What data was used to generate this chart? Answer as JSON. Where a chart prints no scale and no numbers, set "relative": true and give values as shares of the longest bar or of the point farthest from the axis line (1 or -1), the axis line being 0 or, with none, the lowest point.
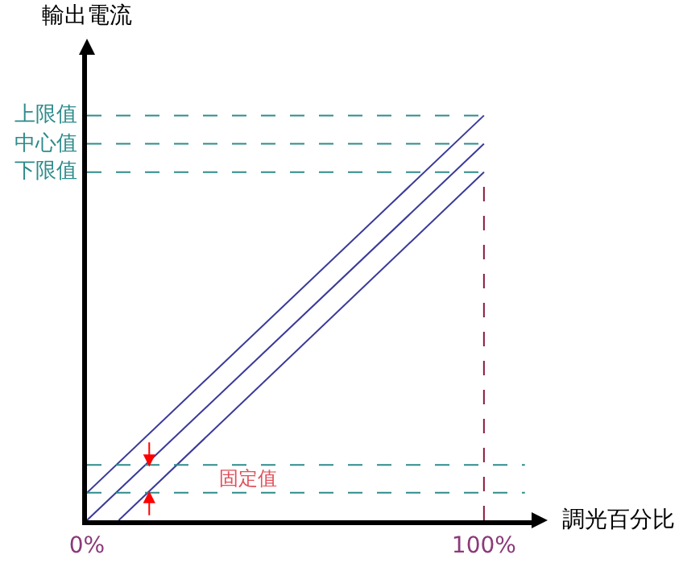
{
  "chart_data": {
    "type": "line",
    "relative": true,
    "xlabel": "調光百分比",
    "ylabel": "輸出電流",
    "xlim": [
      0,
      112
    ],
    "xticks": [
      {
        "value": 0,
        "label": "0%"
      },
      {
        "value": 100,
        "label": "100%"
      }
    ],
    "series": [
      {
        "color": "#3a3a9a",
        "x": [
          0,
          100
        ],
        "values": [
          0.068,
          1
        ]
      },
      {
        "color": "#3a3a9a",
        "x": [
          0,
          100
        ],
        "values": [
          0,
          0.93
        ]
      },
      {
        "color": "#3a3a9a",
        "x": [
          8,
          100
        ],
        "values": [
          0,
          0.86
        ]
      }
    ],
    "ref_lines": [
      {
        "axis": "y",
        "value": 1,
        "label": "上限值",
        "color": "#2e8b8b",
        "line_style": "dashed"
      },
      {
        "axis": "y",
        "value": 0.93,
        "label": "中心值",
        "color": "#2e8b8b",
        "line_style": "dashed"
      },
      {
        "axis": "y",
        "value": 0.86,
        "label": "下限值",
        "color": "#2e8b8b",
        "line_style": "dashed"
      },
      {
        "axis": "y",
        "value": 0.137,
        "color": "#2e8b8b",
        "line_style": "dashed"
      },
      {
        "axis": "y",
        "value": 0.068,
        "color": "#2e8b8b",
        "line_style": "dashed"
      },
      {
        "axis": "x",
        "value": 100,
        "color": "#8b1a3a",
        "line_style": "dashed"
      }
    ],
    "annotations": [
      "固定值"
    ],
    "marker": "none",
    "line_style": "solid",
    "grid": false
  }
}
